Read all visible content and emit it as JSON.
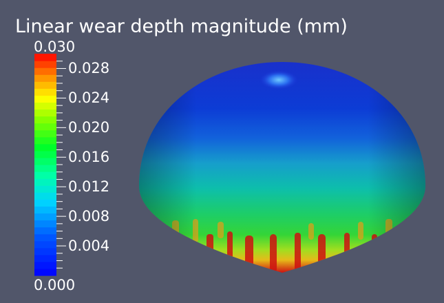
{
  "scalar_bar": {
    "title": "Linear wear depth magnitude (mm)",
    "max_label": "0.030",
    "min_label": "0.000",
    "tick_labels": [
      "0.028",
      "0.024",
      "0.020",
      "0.016",
      "0.012",
      "0.008",
      "0.004"
    ],
    "range": [
      0.0,
      0.03
    ],
    "color_steps": 32,
    "colormap": "blue-cyan-green-yellow-red rainbow"
  },
  "view": {
    "background": "#51566a",
    "object": "hemisphere",
    "wear_pattern": "low at apex, high at rim"
  }
}
